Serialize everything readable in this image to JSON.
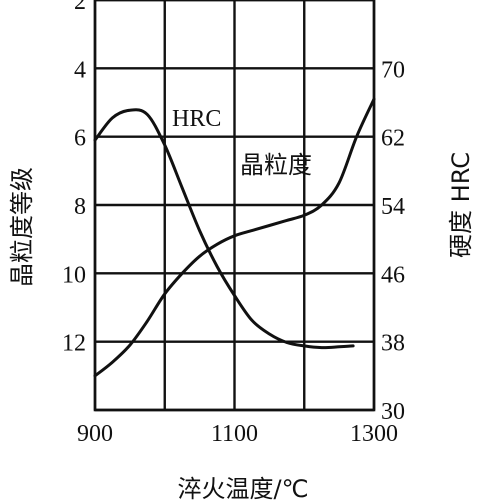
{
  "chart_data": {
    "type": "line",
    "x": {
      "label": "淬火温度/℃",
      "range": [
        900,
        1300
      ],
      "ticks": [
        900,
        1100,
        1300
      ],
      "grid": [
        900,
        1000,
        1100,
        1200,
        1300
      ]
    },
    "y_left": {
      "label": "晶粒度等级",
      "range": [
        2,
        14
      ],
      "inverted": true,
      "ticks": [
        2,
        4,
        6,
        8,
        10,
        12
      ],
      "grid": [
        2,
        4,
        6,
        8,
        10,
        12,
        14
      ]
    },
    "y_right": {
      "label": "硬度 HRC",
      "range": [
        30,
        78
      ],
      "ticks": [
        70,
        62,
        54,
        46,
        38,
        30
      ]
    },
    "series": [
      {
        "name": "HRC",
        "axis": "right",
        "x": [
          900,
          925,
          950,
          975,
          1000,
          1025,
          1050,
          1075,
          1100,
          1125,
          1150,
          1175,
          1200,
          1225,
          1250,
          1270
        ],
        "y": [
          61.6,
          64.2,
          65.1,
          64.6,
          61.0,
          56.0,
          51.0,
          46.8,
          43.4,
          40.5,
          38.9,
          37.9,
          37.5,
          37.3,
          37.4,
          37.5
        ]
      },
      {
        "name": "晶粒度",
        "axis": "left",
        "x": [
          900,
          925,
          950,
          975,
          1000,
          1025,
          1050,
          1075,
          1100,
          1125,
          1150,
          1175,
          1200,
          1225,
          1250,
          1275,
          1300
        ],
        "y": [
          13.0,
          12.6,
          12.1,
          11.4,
          10.6,
          10.0,
          9.5,
          9.15,
          8.9,
          8.75,
          8.6,
          8.45,
          8.3,
          8.0,
          7.35,
          6.0,
          4.9
        ]
      }
    ]
  }
}
